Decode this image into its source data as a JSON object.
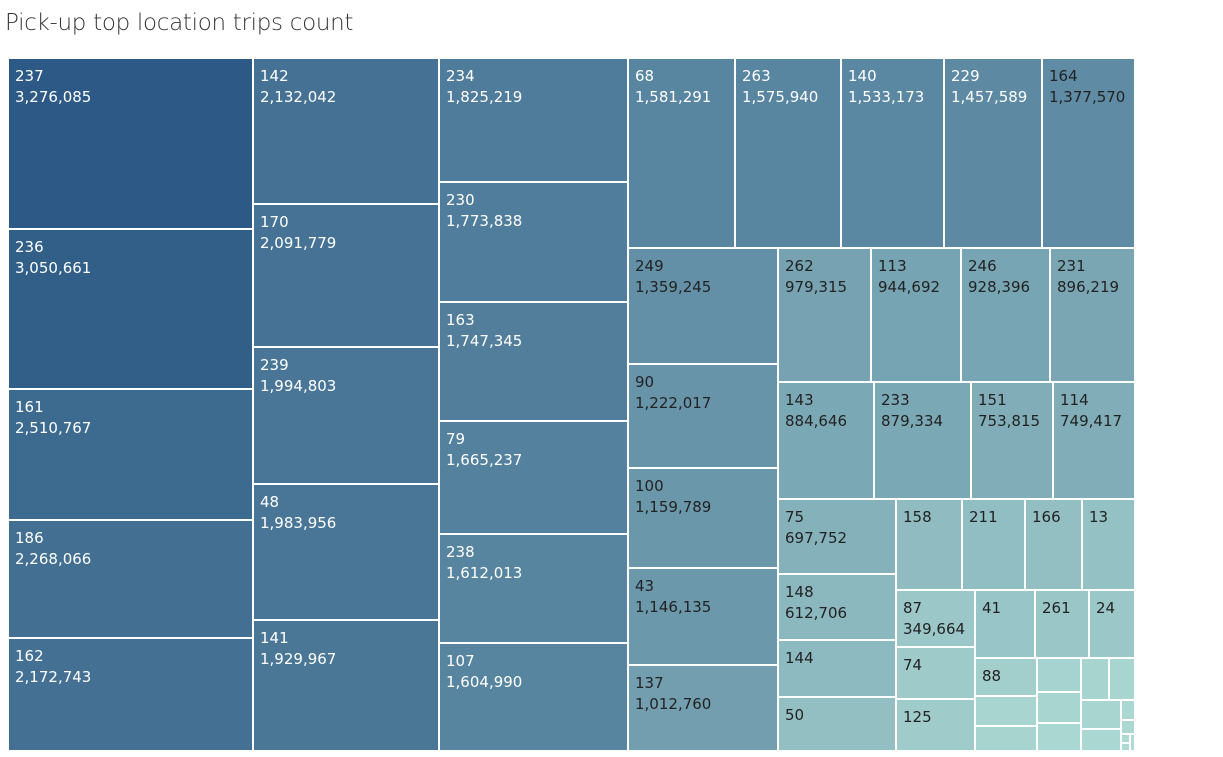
{
  "chart_data": {
    "type": "treemap",
    "title": "Pick-up top location trips count",
    "items": [
      {
        "label": "237",
        "value": 3276085,
        "value_text": "3,276,085",
        "shade": 1.0
      },
      {
        "label": "236",
        "value": 3050661,
        "value_text": "3,050,661",
        "shade": 0.96
      },
      {
        "label": "161",
        "value": 2510767,
        "value_text": "2,510,767",
        "shade": 0.88
      },
      {
        "label": "186",
        "value": 2268066,
        "value_text": "2,268,066",
        "shade": 0.84
      },
      {
        "label": "162",
        "value": 2172743,
        "value_text": "2,172,743",
        "shade": 0.83
      },
      {
        "label": "142",
        "value": 2132042,
        "value_text": "2,132,042",
        "shade": 0.82
      },
      {
        "label": "170",
        "value": 2091779,
        "value_text": "2,091,779",
        "shade": 0.81
      },
      {
        "label": "239",
        "value": 1994803,
        "value_text": "1,994,803",
        "shade": 0.79
      },
      {
        "label": "48",
        "value": 1983956,
        "value_text": "1,983,956",
        "shade": 0.79
      },
      {
        "label": "141",
        "value": 1929967,
        "value_text": "1,929,967",
        "shade": 0.78
      },
      {
        "label": "234",
        "value": 1825219,
        "value_text": "1,825,219",
        "shade": 0.75
      },
      {
        "label": "230",
        "value": 1773838,
        "value_text": "1,773,838",
        "shade": 0.74
      },
      {
        "label": "163",
        "value": 1747345,
        "value_text": "1,747,345",
        "shade": 0.73
      },
      {
        "label": "79",
        "value": 1665237,
        "value_text": "1,665,237",
        "shade": 0.71
      },
      {
        "label": "238",
        "value": 1612013,
        "value_text": "1,612,013",
        "shade": 0.69
      },
      {
        "label": "107",
        "value": 1604990,
        "value_text": "1,604,990",
        "shade": 0.69
      },
      {
        "label": "68",
        "value": 1581291,
        "value_text": "1,581,291",
        "shade": 0.68
      },
      {
        "label": "263",
        "value": 1575940,
        "value_text": "1,575,940",
        "shade": 0.68
      },
      {
        "label": "140",
        "value": 1533173,
        "value_text": "1,533,173",
        "shade": 0.67
      },
      {
        "label": "229",
        "value": 1457589,
        "value_text": "1,457,589",
        "shade": 0.65
      },
      {
        "label": "164",
        "value": 1377570,
        "value_text": "1,377,570",
        "shade": 0.63
      },
      {
        "label": "249",
        "value": 1359245,
        "value_text": "1,359,245",
        "shade": 0.6
      },
      {
        "label": "90",
        "value": 1222017,
        "value_text": "1,222,017",
        "shade": 0.57
      },
      {
        "label": "100",
        "value": 1159789,
        "value_text": "1,159,789",
        "shade": 0.55
      },
      {
        "label": "43",
        "value": 1146135,
        "value_text": "1,146,135",
        "shade": 0.54
      },
      {
        "label": "137",
        "value": 1012760,
        "value_text": "1,012,760",
        "shade": 0.5
      },
      {
        "label": "262",
        "value": 979315,
        "value_text": "979,315",
        "shade": 0.47
      },
      {
        "label": "113",
        "value": 944692,
        "value_text": "944,692",
        "shade": 0.46
      },
      {
        "label": "246",
        "value": 928396,
        "value_text": "928,396",
        "shade": 0.45
      },
      {
        "label": "231",
        "value": 896219,
        "value_text": "896,219",
        "shade": 0.44
      },
      {
        "label": "143",
        "value": 884646,
        "value_text": "884,646",
        "shade": 0.43
      },
      {
        "label": "233",
        "value": 879334,
        "value_text": "879,334",
        "shade": 0.43
      },
      {
        "label": "151",
        "value": 753815,
        "value_text": "753,815",
        "shade": 0.39
      },
      {
        "label": "114",
        "value": 749417,
        "value_text": "749,417",
        "shade": 0.39
      },
      {
        "label": "75",
        "value": 697752,
        "value_text": "697,752",
        "shade": 0.36
      },
      {
        "label": "148",
        "value": 612706,
        "value_text": "612,706",
        "shade": 0.32
      },
      {
        "label": "87",
        "value": 349664,
        "value_text": "349,664",
        "shade": 0.2
      },
      {
        "label": "158",
        "value": null,
        "value_text": "",
        "shade": 0.28
      },
      {
        "label": "211",
        "value": null,
        "value_text": "",
        "shade": 0.27
      },
      {
        "label": "166",
        "value": null,
        "value_text": "",
        "shade": 0.26
      },
      {
        "label": "13",
        "value": null,
        "value_text": "",
        "shade": 0.25
      },
      {
        "label": "41",
        "value": null,
        "value_text": "",
        "shade": 0.22
      },
      {
        "label": "261",
        "value": null,
        "value_text": "",
        "shade": 0.21
      },
      {
        "label": "24",
        "value": null,
        "value_text": "",
        "shade": 0.2
      },
      {
        "label": "144",
        "value": null,
        "value_text": "",
        "shade": 0.3
      },
      {
        "label": "74",
        "value": null,
        "value_text": "",
        "shade": 0.18
      },
      {
        "label": "88",
        "value": null,
        "value_text": "",
        "shade": 0.15
      },
      {
        "label": "50",
        "value": null,
        "value_text": "",
        "shade": 0.26
      },
      {
        "label": "125",
        "value": null,
        "value_text": "",
        "shade": 0.17
      },
      {
        "label": "",
        "value": null,
        "value_text": "",
        "shade": 0.12
      },
      {
        "label": "",
        "value": null,
        "value_text": "",
        "shade": 0.11
      },
      {
        "label": "",
        "value": null,
        "value_text": "",
        "shade": 0.1
      },
      {
        "label": "",
        "value": null,
        "value_text": "",
        "shade": 0.1
      },
      {
        "label": "",
        "value": null,
        "value_text": "",
        "shade": 0.11
      },
      {
        "label": "",
        "value": null,
        "value_text": "",
        "shade": 0.1
      },
      {
        "label": "",
        "value": null,
        "value_text": "",
        "shade": 0.09
      },
      {
        "label": "",
        "value": null,
        "value_text": "",
        "shade": 0.1
      },
      {
        "label": "",
        "value": null,
        "value_text": "",
        "shade": 0.09
      },
      {
        "label": "",
        "value": null,
        "value_text": "",
        "shade": 0.09
      },
      {
        "label": "",
        "value": null,
        "value_text": "",
        "shade": 0.08
      },
      {
        "label": "",
        "value": null,
        "value_text": "",
        "shade": 0.07
      },
      {
        "label": "",
        "value": null,
        "value_text": "",
        "shade": 0.07
      },
      {
        "label": "",
        "value": null,
        "value_text": "",
        "shade": 0.06
      },
      {
        "label": "",
        "value": null,
        "value_text": "",
        "shade": 0.06
      }
    ],
    "color_scale": {
      "low": "#b7e3d9",
      "high": "#2c5985"
    },
    "label_colors": {
      "light": "#ffffff",
      "dark": "#222222"
    }
  }
}
